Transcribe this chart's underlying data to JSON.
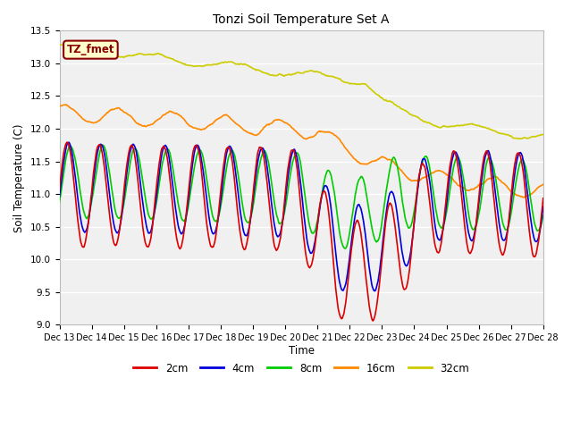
{
  "title": "Tonzi Soil Temperature Set A",
  "xlabel": "Time",
  "ylabel": "Soil Temperature (C)",
  "ylim": [
    9.0,
    13.5
  ],
  "yticks": [
    9.0,
    9.5,
    10.0,
    10.5,
    11.0,
    11.5,
    12.0,
    12.5,
    13.0,
    13.5
  ],
  "fig_bg": "#ffffff",
  "plot_bg": "#f0f0f0",
  "grid_color": "#ffffff",
  "label_box_text": "TZ_fmet",
  "label_box_bg": "#ffffcc",
  "label_box_border": "#8b0000",
  "label_box_text_color": "#8b0000",
  "series_colors": {
    "2cm": "#dd0000",
    "4cm": "#0000dd",
    "8cm": "#00cc00",
    "16cm": "#ff8800",
    "32cm": "#cccc00"
  },
  "linewidth": 1.2,
  "xtick_labels": [
    "Dec 13",
    "Dec 14",
    "Dec 15",
    "Dec 16",
    "Dec 17",
    "Dec 18",
    "Dec 19",
    "Dec 20",
    "Dec 21",
    "Dec 22",
    "Dec 23",
    "Dec 24",
    "Dec 25",
    "Dec 26",
    "Dec 27",
    "Dec 28"
  ],
  "legend_entries": [
    "2cm",
    "4cm",
    "8cm",
    "16cm",
    "32cm"
  ],
  "legend_colors": [
    "#dd0000",
    "#0000dd",
    "#00cc00",
    "#ff8800",
    "#cccc00"
  ]
}
